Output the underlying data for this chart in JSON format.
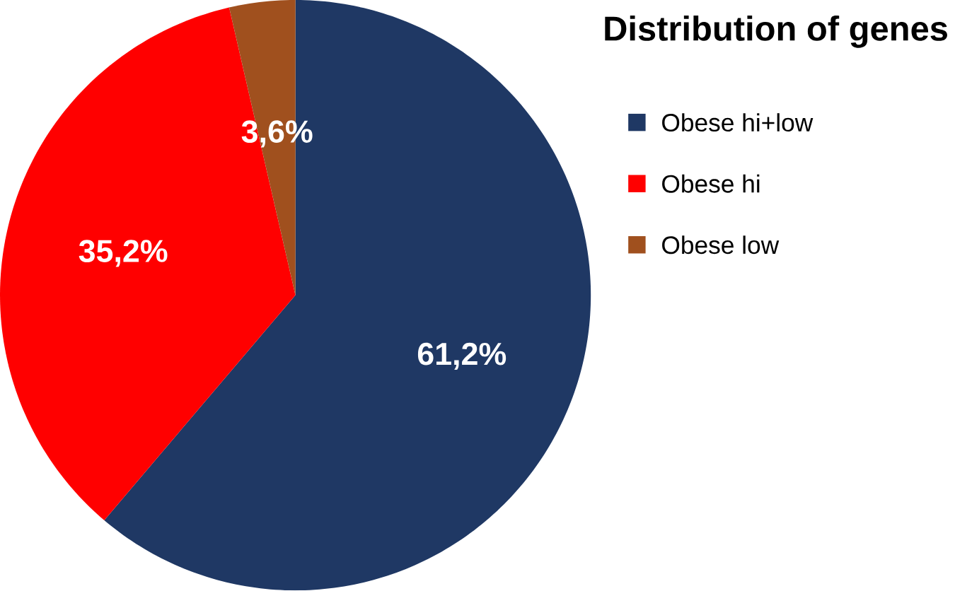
{
  "chart_data": {
    "type": "pie",
    "title": "Distribution of genes",
    "categories": [
      "Obese hi+low",
      "Obese hi",
      "Obese low"
    ],
    "values": [
      61.2,
      35.2,
      3.6
    ],
    "colors": [
      "#1f3864",
      "#ff0000",
      "#a0501e"
    ],
    "value_labels": [
      "61,2%",
      "35,2%",
      "3,6%"
    ],
    "legend": "right"
  }
}
